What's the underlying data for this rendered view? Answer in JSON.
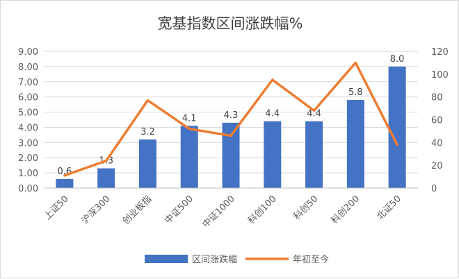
{
  "chart_data": {
    "type": "bar",
    "title": "宽基指数区间涨跌幅%",
    "categories": [
      "上证50",
      "沪深300",
      "创业板指",
      "中证500",
      "中证1000",
      "科创100",
      "科创50",
      "科创200",
      "北证50"
    ],
    "series": [
      {
        "name": "区间涨跌幅",
        "type": "bar",
        "axis": "left",
        "color": "#4472C4",
        "values": [
          0.6,
          1.3,
          3.2,
          4.1,
          4.3,
          4.4,
          4.4,
          5.8,
          8.0
        ],
        "labels": [
          "0.6",
          "1.3",
          "3.2",
          "4.1",
          "4.3",
          "4.4",
          "4.4",
          "5.8",
          "8.0"
        ]
      },
      {
        "name": "年初至今",
        "type": "line",
        "axis": "right",
        "color": "#ED7D31",
        "values": [
          11,
          24,
          77,
          52,
          46,
          95,
          68,
          110,
          38
        ]
      }
    ],
    "y_left": {
      "min": 0,
      "max": 9,
      "step": 1,
      "decimals": 2
    },
    "y_right": {
      "min": 0,
      "max": 120,
      "step": 20,
      "decimals": 0
    },
    "grid": true,
    "legend_position": "bottom"
  }
}
